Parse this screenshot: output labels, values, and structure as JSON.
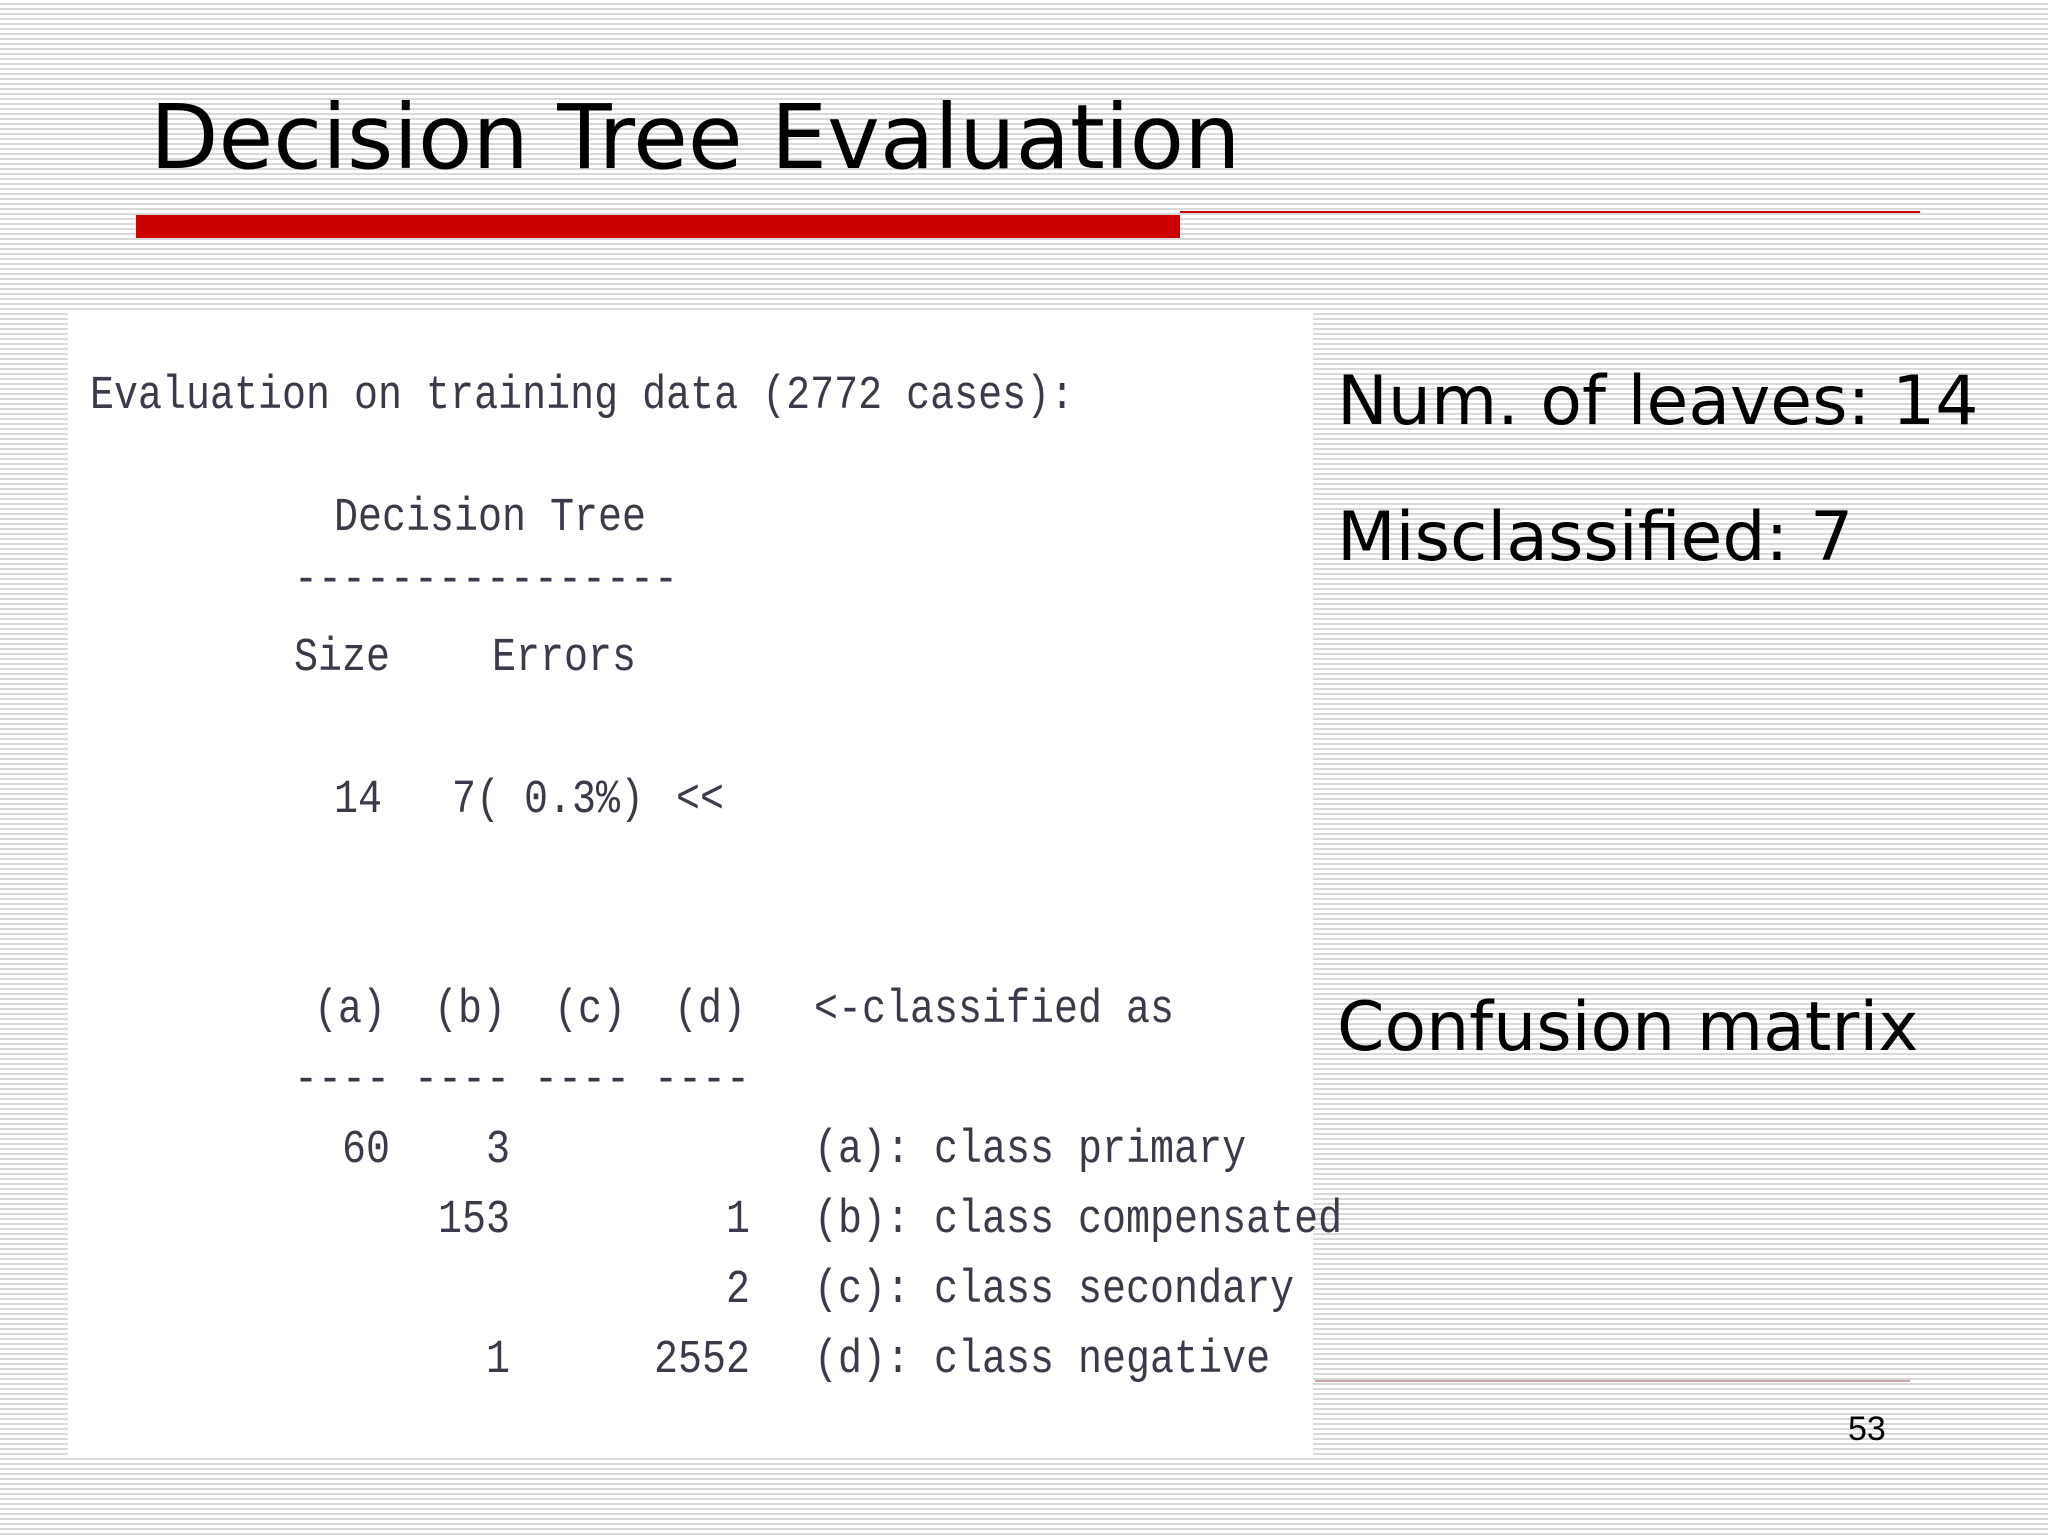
{
  "slide": {
    "title": "Decision Tree Evaluation",
    "page_number": "53",
    "accent_color": "#cc0000"
  },
  "notes": {
    "leaves": "Num. of leaves: 14",
    "misclassified": "Misclassified: 7",
    "confusion": "Confusion matrix"
  },
  "output": {
    "heading": "Evaluation on training data (2772 cases):",
    "tree_label": "Decision Tree",
    "tree_dashes": "----------------",
    "size_header": "Size",
    "errors_header": "Errors",
    "size_value": "14",
    "errors_value": "7( 0.3%)",
    "marker": "<<",
    "matrix": {
      "columns": [
        "(a)",
        "(b)",
        "(c)",
        "(d)"
      ],
      "col_dashes": [
        "----",
        "----",
        "----",
        "----"
      ],
      "classified_label": "<-classified as",
      "rows": [
        {
          "cells": [
            "60",
            "3",
            "",
            ""
          ],
          "label": "(a): class primary"
        },
        {
          "cells": [
            "",
            "153",
            "",
            "1"
          ],
          "label": "(b): class compensated"
        },
        {
          "cells": [
            "",
            "",
            "",
            "2"
          ],
          "label": "(c): class secondary"
        },
        {
          "cells": [
            "",
            "1",
            "",
            "2552"
          ],
          "label": "(d): class negative"
        }
      ]
    }
  }
}
